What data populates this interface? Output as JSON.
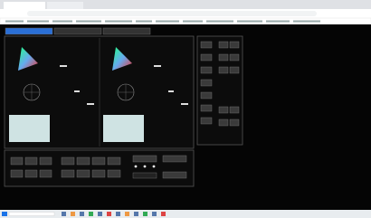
{
  "layout": {
    "app_tabs": 3,
    "side_buttons_left": 7,
    "side_buttons_right": 10,
    "bottom_left_buttons": 6,
    "bottom_mid_buttons": 8
  }
}
